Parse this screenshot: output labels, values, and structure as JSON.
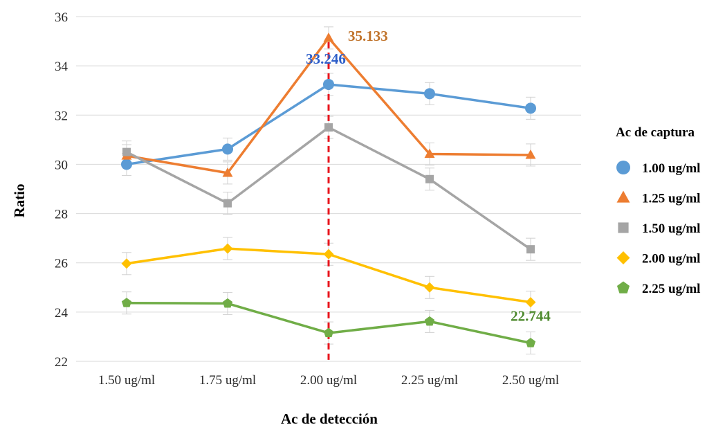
{
  "chart_data": {
    "type": "line",
    "title": "",
    "xlabel": "Ac de detección",
    "ylabel": "Ratio",
    "categories": [
      "1.50 ug/ml",
      "1.75 ug/ml",
      "2.00 ug/ml",
      "2.25 ug/ml",
      "2.50 ug/ml"
    ],
    "ylim": [
      22,
      36
    ],
    "yticks": [
      22,
      24,
      26,
      28,
      30,
      32,
      34,
      36
    ],
    "grid": "horizontal",
    "legend": {
      "title": "Ac de captura",
      "position": "right"
    },
    "reference_line": {
      "category": "2.00 ug/ml",
      "color": "#e8141c",
      "style": "dashed"
    },
    "series": [
      {
        "name": "1.00 ug/ml",
        "color": "#5b9bd5",
        "marker": "circle",
        "values": [
          30.0,
          30.62,
          33.246,
          32.87,
          32.28
        ]
      },
      {
        "name": "1.25 ug/ml",
        "color": "#ed7d31",
        "marker": "triangle",
        "values": [
          30.35,
          29.65,
          35.133,
          30.42,
          30.38
        ]
      },
      {
        "name": "1.50 ug/ml",
        "color": "#a5a5a5",
        "marker": "square",
        "values": [
          30.5,
          28.42,
          31.5,
          29.4,
          26.55
        ]
      },
      {
        "name": "2.00 ug/ml",
        "color": "#ffc000",
        "marker": "diamond",
        "values": [
          25.97,
          26.58,
          26.35,
          25.0,
          24.4
        ]
      },
      {
        "name": "2.25 ug/ml",
        "color": "#70ad47",
        "marker": "pentagon",
        "values": [
          24.37,
          24.35,
          23.15,
          23.62,
          22.744
        ]
      }
    ],
    "annotations": [
      {
        "text": "35.133",
        "series": "1.25 ug/ml",
        "category": "2.00 ug/ml",
        "color": "#c0732b"
      },
      {
        "text": "33.246",
        "series": "1.00 ug/ml",
        "category": "2.00 ug/ml",
        "color": "#2e5fc9"
      },
      {
        "text": "22.744",
        "series": "2.25 ug/ml",
        "category": "2.50 ug/ml",
        "color": "#4e8a2e"
      }
    ]
  }
}
